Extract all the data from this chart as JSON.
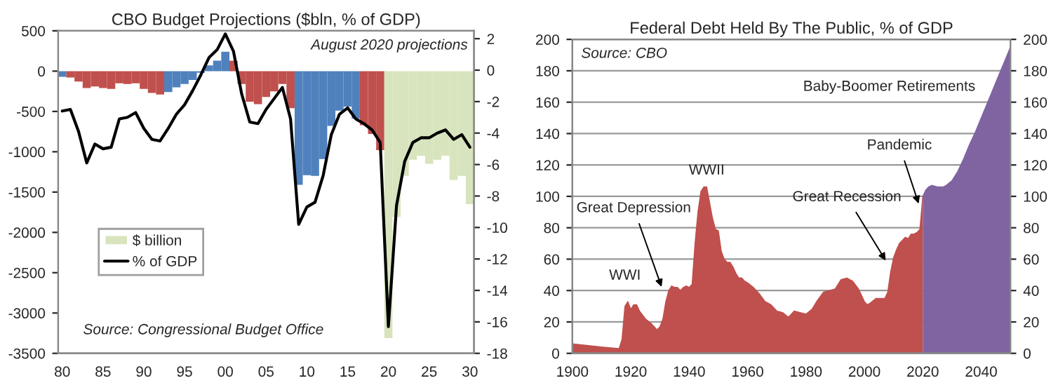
{
  "chart_data": [
    {
      "type": "bar",
      "title": "CBO Budget Projections ($bln, % of GDP)",
      "x": [
        1980,
        1981,
        1982,
        1983,
        1984,
        1985,
        1986,
        1987,
        1988,
        1989,
        1990,
        1991,
        1992,
        1993,
        1994,
        1995,
        1996,
        1997,
        1998,
        1999,
        2000,
        2001,
        2002,
        2003,
        2004,
        2005,
        2006,
        2007,
        2008,
        2009,
        2010,
        2011,
        2012,
        2013,
        2014,
        2015,
        2016,
        2017,
        2018,
        2019,
        2020,
        2021,
        2022,
        2023,
        2024,
        2025,
        2026,
        2027,
        2028,
        2029,
        2030
      ],
      "xlim": [
        1979.5,
        2030.5
      ],
      "xticks": [
        {
          "value": 1980,
          "label": "80"
        },
        {
          "value": 1985,
          "label": "85"
        },
        {
          "value": 1990,
          "label": "90"
        },
        {
          "value": 1995,
          "label": "95"
        },
        {
          "value": 2000,
          "label": "00"
        },
        {
          "value": 2005,
          "label": "05"
        },
        {
          "value": 2010,
          "label": "10"
        },
        {
          "value": 2015,
          "label": "15"
        },
        {
          "value": 2020,
          "label": "20"
        },
        {
          "value": 2025,
          "label": "25"
        },
        {
          "value": 2030,
          "label": "30"
        }
      ],
      "ylim": [
        -3500,
        500
      ],
      "yticks": [
        -3500,
        -3000,
        -2500,
        -2000,
        -1500,
        -1000,
        -500,
        0,
        500
      ],
      "y2lim": [
        -18,
        2.5
      ],
      "y2ticks": [
        -18,
        -16,
        -14,
        -12,
        -10,
        -8,
        -6,
        -4,
        -2,
        0,
        2
      ],
      "series": [
        {
          "x": [
            1980,
            1981,
            1982,
            1983,
            1984,
            1985,
            1986,
            1987,
            1988,
            1989,
            1990,
            1991,
            1992,
            1993,
            1994,
            1995,
            1996,
            1997,
            1998,
            1999,
            2000,
            2001,
            2002,
            2003,
            2004,
            2005,
            2006,
            2007,
            2008,
            2009,
            2010,
            2011,
            2012,
            2013,
            2014,
            2015,
            2016,
            2017,
            2018,
            2019
          ],
          "colors": [
            "#4f81bd",
            "#c0504d",
            "#c0504d",
            "#c0504d",
            "#c0504d",
            "#c0504d",
            "#c0504d",
            "#c0504d",
            "#c0504d",
            "#c0504d",
            "#c0504d",
            "#c0504d",
            "#c0504d",
            "#4f81bd",
            "#4f81bd",
            "#4f81bd",
            "#4f81bd",
            "#4f81bd",
            "#4f81bd",
            "#4f81bd",
            "#4f81bd",
            "#c0504d",
            "#c0504d",
            "#c0504d",
            "#c0504d",
            "#c0504d",
            "#c0504d",
            "#c0504d",
            "#c0504d",
            "#4f81bd",
            "#4f81bd",
            "#4f81bd",
            "#4f81bd",
            "#4f81bd",
            "#4f81bd",
            "#4f81bd",
            "#4f81bd",
            "#c0504d",
            "#c0504d",
            "#c0504d"
          ],
          "values": [
            -70,
            -80,
            -130,
            -210,
            -190,
            -210,
            -220,
            -150,
            -160,
            -150,
            -220,
            -270,
            -290,
            -260,
            -200,
            -160,
            -110,
            -20,
            70,
            130,
            240,
            130,
            -160,
            -380,
            -410,
            -320,
            -250,
            -160,
            -460,
            -1410,
            -1290,
            -1300,
            -1090,
            -680,
            -490,
            -440,
            -590,
            -670,
            -780,
            -980
          ]
        },
        {
          "name": "$ billion",
          "color": "#d7e4bd",
          "x": [
            2020,
            2021,
            2022,
            2023,
            2024,
            2025,
            2026,
            2027,
            2028,
            2029,
            2030
          ],
          "values": [
            -3310,
            -1810,
            -1300,
            -1100,
            -1050,
            -1150,
            -1100,
            -1050,
            -1350,
            -1300,
            -1650
          ]
        },
        {
          "name": "% of GDP",
          "type": "line",
          "axis": "y2",
          "color": "#000000",
          "values": [
            -2.6,
            -2.5,
            -3.9,
            -5.9,
            -4.7,
            -5.0,
            -4.9,
            -3.1,
            -3.0,
            -2.7,
            -3.7,
            -4.4,
            -4.5,
            -3.7,
            -2.8,
            -2.2,
            -1.3,
            -0.3,
            0.8,
            1.3,
            2.3,
            1.2,
            -1.5,
            -3.3,
            -3.4,
            -2.5,
            -1.8,
            -1.1,
            -3.1,
            -9.8,
            -8.7,
            -8.4,
            -6.7,
            -4.1,
            -2.8,
            -2.4,
            -3.1,
            -3.4,
            -3.8,
            -4.6,
            -16.3,
            -8.6,
            -5.8,
            -4.6,
            -4.3,
            -4.3,
            -4.0,
            -3.8,
            -4.4,
            -4.1,
            -4.9
          ]
        }
      ],
      "annotations": [
        "August 2020 projections",
        "Source: Congressional Budget Office"
      ],
      "legend": "lower left"
    },
    {
      "type": "area",
      "title": "Federal Debt Held By The Public, % of GDP",
      "xlim": [
        1900,
        2050
      ],
      "xticks": [
        1900,
        1920,
        1940,
        1960,
        1980,
        2000,
        2020,
        2040
      ],
      "ylim": [
        0,
        200
      ],
      "yticks": [
        0,
        20,
        40,
        60,
        80,
        100,
        120,
        140,
        160,
        180,
        200
      ],
      "y2lim": [
        0,
        200
      ],
      "y2ticks": [
        0,
        20,
        40,
        60,
        80,
        100,
        120,
        140,
        160,
        180,
        200
      ],
      "grid": "y",
      "series": [
        {
          "color": "#c0504d",
          "x": [
            1900,
            1905,
            1910,
            1916,
            1917,
            1918,
            1919,
            1920,
            1921,
            1922,
            1923,
            1925,
            1927,
            1929,
            1930,
            1931,
            1932,
            1933,
            1934,
            1935,
            1936,
            1937,
            1938,
            1939,
            1940,
            1941,
            1942,
            1943,
            1944,
            1945,
            1946,
            1947,
            1948,
            1949,
            1950,
            1951,
            1952,
            1953,
            1954,
            1955,
            1956,
            1957,
            1958,
            1959,
            1960,
            1962,
            1964,
            1966,
            1968,
            1970,
            1972,
            1974,
            1976,
            1978,
            1980,
            1982,
            1984,
            1986,
            1988,
            1990,
            1992,
            1994,
            1996,
            1998,
            2000,
            2001,
            2002,
            2004,
            2006,
            2007,
            2008,
            2009,
            2010,
            2011,
            2012,
            2013,
            2014,
            2015,
            2016,
            2017,
            2018,
            2019,
            2020
          ],
          "values": [
            6,
            5,
            4,
            3,
            9,
            30,
            33,
            28,
            31,
            31,
            27,
            22,
            19,
            15,
            17,
            22,
            33,
            40,
            43,
            42,
            42,
            40,
            42,
            43,
            42,
            44,
            70,
            90,
            103,
            106,
            106,
            96,
            86,
            79,
            78,
            65,
            60,
            58,
            58,
            55,
            51,
            48,
            48,
            46,
            45,
            42,
            38,
            33,
            31,
            27,
            26,
            23,
            27,
            26,
            25,
            28,
            34,
            39,
            40,
            41,
            47,
            48,
            46,
            41,
            33,
            31,
            32,
            35,
            35,
            35,
            39,
            52,
            61,
            66,
            70,
            72,
            74,
            73,
            76,
            76,
            77,
            79,
            100
          ]
        },
        {
          "color": "#8064a2",
          "x": [
            2020,
            2021,
            2022,
            2023,
            2025,
            2027,
            2028,
            2030,
            2032,
            2034,
            2036,
            2038,
            2040,
            2042,
            2044,
            2046,
            2048,
            2050
          ],
          "values": [
            100,
            104,
            106,
            107,
            106,
            106,
            107,
            110,
            116,
            124,
            133,
            141,
            150,
            159,
            168,
            177,
            186,
            195
          ]
        }
      ],
      "annotations": [
        "Source: CBO",
        {
          "text": "WWI",
          "x": 1918,
          "y": 33
        },
        {
          "text": "Great Depression",
          "x": 1931,
          "y": 40
        },
        {
          "text": "WWII",
          "x": 1946,
          "y": 106
        },
        {
          "text": "Great Recession",
          "x": 2008,
          "y": 57
        },
        {
          "text": "Pandemic",
          "x": 2019,
          "y": 93
        },
        "Baby-Boomer Retirements"
      ]
    }
  ]
}
